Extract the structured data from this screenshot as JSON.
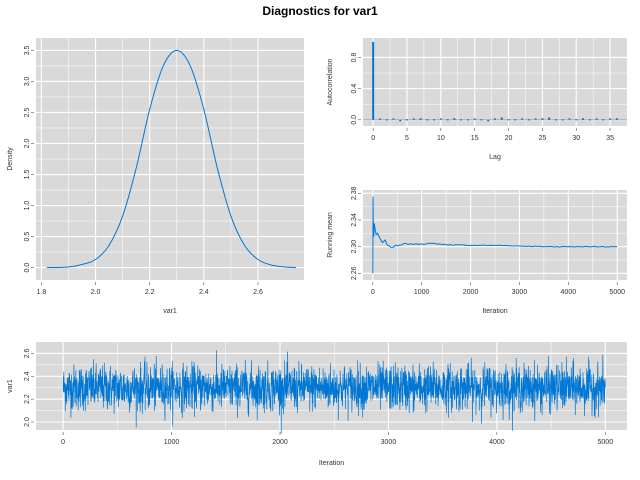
{
  "page": {
    "title": "Diagnostics for var1"
  },
  "colors": {
    "series": "#0077d4",
    "panel": "#d9d9d9",
    "grid": "#ffffff",
    "zero_line": "#8aa0b3"
  },
  "chart_data": [
    {
      "id": "density",
      "type": "line",
      "title": "",
      "xlabel": "var1",
      "ylabel": "Density",
      "xlim": [
        1.78,
        2.77
      ],
      "ylim": [
        -0.2,
        3.7
      ],
      "xticks": [
        1.8,
        2.0,
        2.2,
        2.4,
        2.6
      ],
      "xtick_labels": [
        "1.8",
        "2.0",
        "2.2",
        "2.4",
        "2.6"
      ],
      "yticks": [
        0.0,
        0.5,
        1.0,
        1.5,
        2.0,
        2.5,
        3.0,
        3.5
      ],
      "ytick_labels": [
        "0.0",
        "0.5",
        "1.0",
        "1.5",
        "2.0",
        "2.5",
        "3.0",
        "3.5"
      ],
      "grid": true,
      "x": [
        1.82,
        1.9,
        1.95,
        2.0,
        2.05,
        2.1,
        2.15,
        2.2,
        2.25,
        2.3,
        2.35,
        2.4,
        2.45,
        2.5,
        2.55,
        2.6,
        2.65,
        2.7,
        2.74
      ],
      "y": [
        0.0,
        0.01,
        0.05,
        0.13,
        0.36,
        0.83,
        1.6,
        2.55,
        3.25,
        3.5,
        3.25,
        2.55,
        1.6,
        0.83,
        0.36,
        0.13,
        0.04,
        0.01,
        0.0
      ]
    },
    {
      "id": "autocorrelation",
      "type": "bar",
      "title": "",
      "xlabel": "Lag",
      "ylabel": "Autocorrelation",
      "xlim": [
        -1.5,
        37.5
      ],
      "ylim": [
        -0.08,
        1.05
      ],
      "xticks": [
        0,
        5,
        10,
        15,
        20,
        25,
        30,
        35
      ],
      "xtick_labels": [
        "0",
        "5",
        "10",
        "15",
        "20",
        "25",
        "30",
        "35"
      ],
      "yticks": [
        0.0,
        0.4,
        0.8
      ],
      "ytick_labels": [
        "0.0",
        "0.4",
        "0.8"
      ],
      "grid": true,
      "lags": [
        0,
        1,
        2,
        3,
        4,
        5,
        6,
        7,
        8,
        9,
        10,
        11,
        12,
        13,
        14,
        15,
        16,
        17,
        18,
        19,
        20,
        21,
        22,
        23,
        24,
        25,
        26,
        27,
        28,
        29,
        30,
        31,
        32,
        33,
        34,
        35,
        36
      ],
      "values": [
        1.0,
        0.01,
        -0.01,
        0.01,
        -0.02,
        -0.01,
        0.01,
        0.02,
        -0.01,
        0.0,
        0.01,
        -0.01,
        0.02,
        0.0,
        -0.01,
        0.01,
        0.0,
        -0.02,
        0.01,
        0.03,
        0.0,
        -0.01,
        0.01,
        0.0,
        0.01,
        0.02,
        0.03,
        0.0,
        -0.01,
        0.01,
        0.0,
        0.02,
        -0.01,
        0.01,
        0.0,
        0.01,
        0.02
      ]
    },
    {
      "id": "running_mean",
      "type": "line",
      "title": "",
      "xlabel": "Iteration",
      "ylabel": "Running mean",
      "xlim": [
        -200,
        5200
      ],
      "ylim": [
        2.25,
        2.385
      ],
      "xticks": [
        0,
        1000,
        2000,
        3000,
        4000,
        5000
      ],
      "xtick_labels": [
        "0",
        "1000",
        "2000",
        "3000",
        "4000",
        "5000"
      ],
      "yticks": [
        2.26,
        2.3,
        2.34,
        2.38
      ],
      "ytick_labels": [
        "2.26",
        "2.30",
        "2.34",
        "2.38"
      ],
      "grid": true,
      "x": [
        1,
        5,
        10,
        20,
        30,
        50,
        70,
        100,
        150,
        200,
        250,
        300,
        400,
        500,
        700,
        1000,
        1200,
        1500,
        2000,
        2500,
        3000,
        3500,
        4000,
        4500,
        5000
      ],
      "y": [
        2.26,
        2.375,
        2.33,
        2.315,
        2.335,
        2.325,
        2.318,
        2.32,
        2.312,
        2.306,
        2.31,
        2.302,
        2.299,
        2.301,
        2.304,
        2.304,
        2.305,
        2.303,
        2.302,
        2.302,
        2.301,
        2.3,
        2.3,
        2.3,
        2.3
      ]
    },
    {
      "id": "trace",
      "type": "line",
      "title": "",
      "xlabel": "Iteration",
      "ylabel": "var1",
      "xlim": [
        -250,
        5200
      ],
      "ylim": [
        1.93,
        2.7
      ],
      "xticks": [
        0,
        1000,
        2000,
        3000,
        4000,
        5000
      ],
      "xtick_labels": [
        "0",
        "1000",
        "2000",
        "3000",
        "4000",
        "5000"
      ],
      "yticks": [
        2.0,
        2.2,
        2.4,
        2.6
      ],
      "ytick_labels": [
        "2.0",
        "2.2",
        "2.4",
        "2.6"
      ],
      "grid": true,
      "iterations": [
        1,
        5000
      ],
      "center": 2.3,
      "typical_range": [
        2.1,
        2.5
      ],
      "extreme_range": [
        1.85,
        2.69
      ]
    }
  ]
}
